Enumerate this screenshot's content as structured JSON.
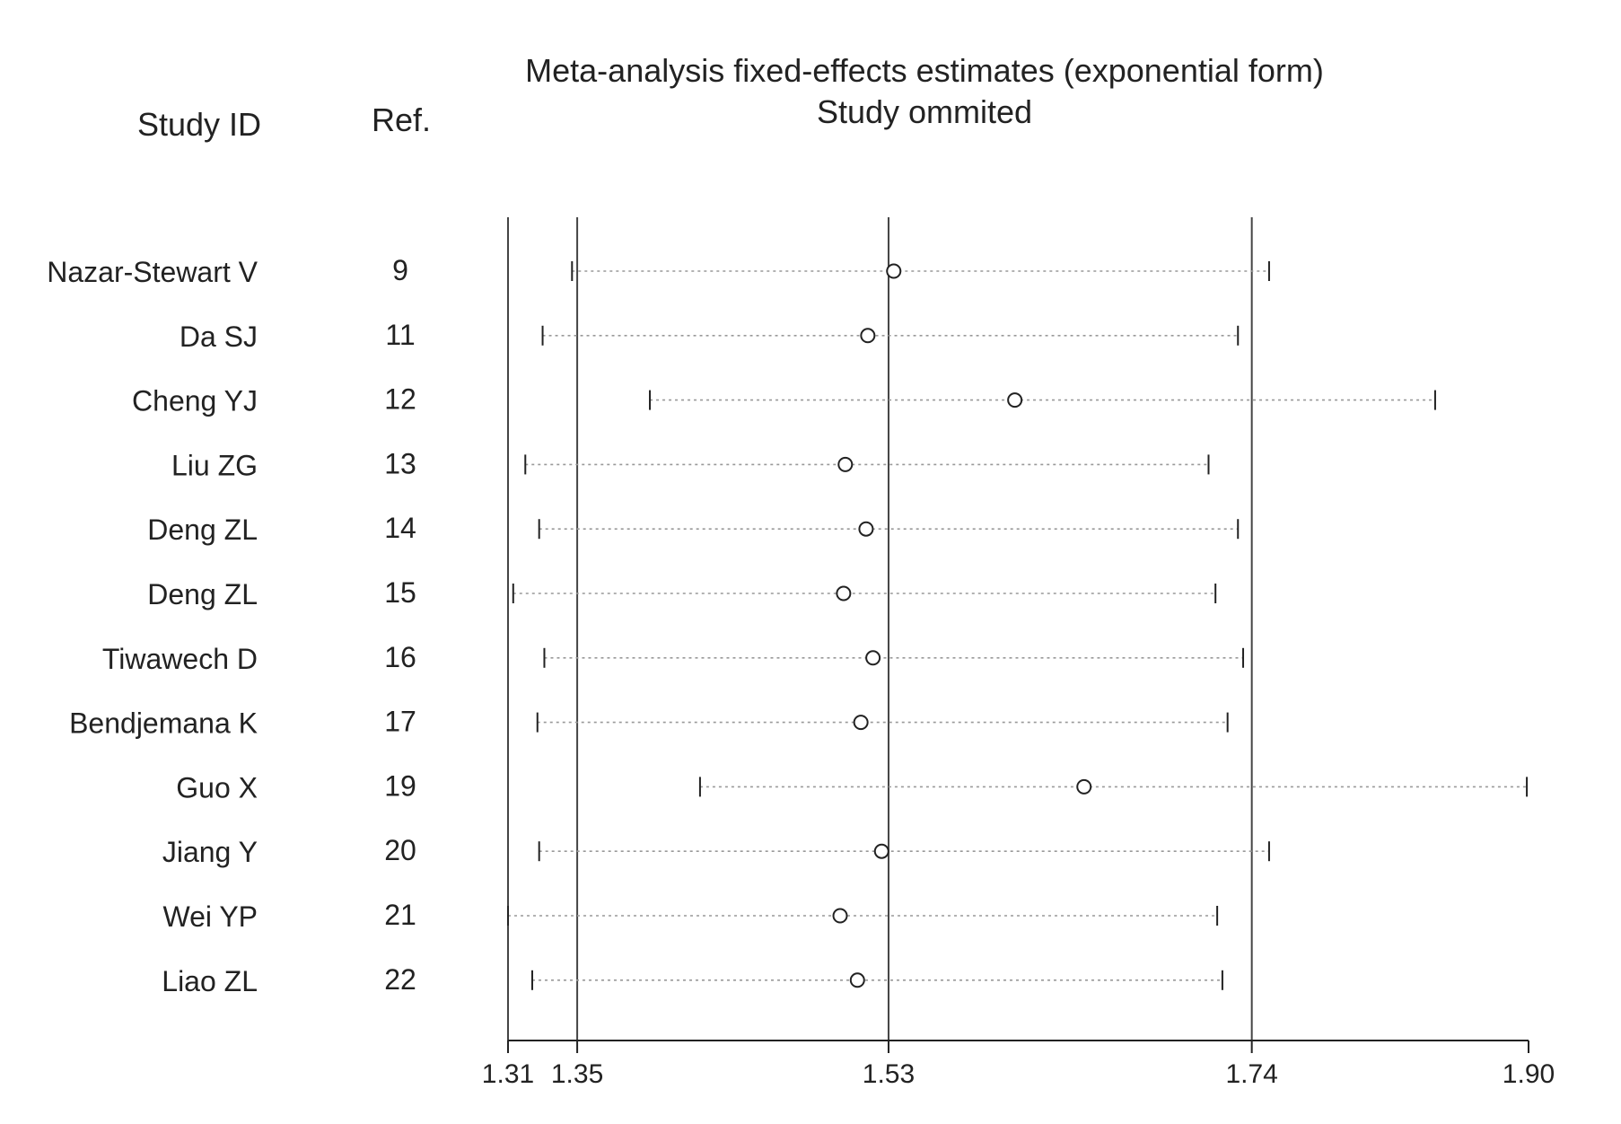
{
  "chart_data": {
    "type": "forest",
    "title": "Meta-analysis fixed-effects estimates (exponential form)",
    "subtitle": "Study ommited",
    "column_headers": {
      "study": "Study  ID",
      "ref": "Ref."
    },
    "studies": [
      {
        "id": "Nazar-Stewart V",
        "ref": "9",
        "estimate": 1.533,
        "lower": 1.347,
        "upper": 1.75
      },
      {
        "id": "Da SJ",
        "ref": "11",
        "estimate": 1.518,
        "lower": 1.33,
        "upper": 1.732
      },
      {
        "id": "Cheng YJ",
        "ref": "12",
        "estimate": 1.603,
        "lower": 1.392,
        "upper": 1.846
      },
      {
        "id": "Liu ZG",
        "ref": "13",
        "estimate": 1.505,
        "lower": 1.32,
        "upper": 1.715
      },
      {
        "id": "Deng ZL",
        "ref": "14",
        "estimate": 1.517,
        "lower": 1.328,
        "upper": 1.732
      },
      {
        "id": "Deng ZL",
        "ref": "15",
        "estimate": 1.504,
        "lower": 1.313,
        "upper": 1.719
      },
      {
        "id": "Tiwawech D",
        "ref": "16",
        "estimate": 1.521,
        "lower": 1.331,
        "upper": 1.735
      },
      {
        "id": "Bendjemana K",
        "ref": "17",
        "estimate": 1.514,
        "lower": 1.327,
        "upper": 1.726
      },
      {
        "id": "Guo X",
        "ref": "19",
        "estimate": 1.643,
        "lower": 1.421,
        "upper": 1.899
      },
      {
        "id": "Jiang Y",
        "ref": "20",
        "estimate": 1.526,
        "lower": 1.328,
        "upper": 1.75
      },
      {
        "id": "Wei YP",
        "ref": "21",
        "estimate": 1.502,
        "lower": 1.31,
        "upper": 1.72
      },
      {
        "id": "Liao ZL",
        "ref": "22",
        "estimate": 1.512,
        "lower": 1.324,
        "upper": 1.723
      }
    ],
    "x_ticks": [
      1.31,
      1.35,
      1.53,
      1.74,
      1.9
    ],
    "x_tick_labels": [
      "1.31",
      "1.35",
      "1.53",
      "1.74",
      "1.90"
    ],
    "xlim": [
      1.31,
      1.9
    ],
    "reference_lines": [
      1.35,
      1.53,
      1.74
    ],
    "colors": {
      "ink": "#222222",
      "ci_line": "#999999",
      "ref_line": "#444444"
    }
  }
}
